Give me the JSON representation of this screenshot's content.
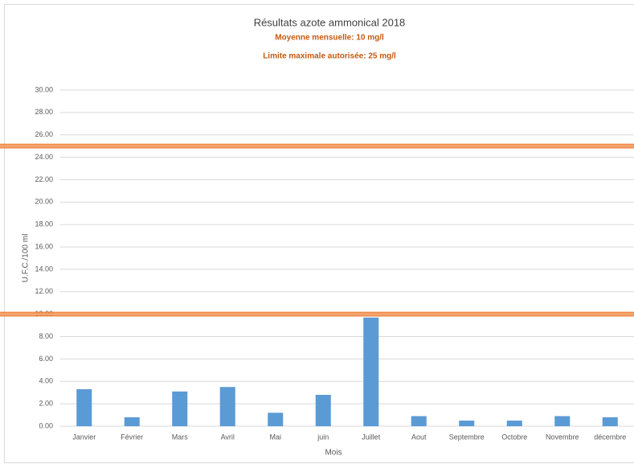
{
  "chart_data": {
    "type": "bar",
    "title": "Résultats azote ammonical 2018",
    "subtitles": [
      "Moyenne mensuelle: 10 mg/l",
      "Limite maximale autorisée: 25 mg/l"
    ],
    "x_label": "Mois",
    "y_label": "U.F.C./100 ml",
    "categories": [
      "Janvier",
      "Février",
      "Mars",
      "Avril",
      "Mai",
      "juin",
      "Juillet",
      "Aout",
      "Septembre",
      "Octobre",
      "Novembre",
      "décembre"
    ],
    "values": [
      3.3,
      0.8,
      3.1,
      3.5,
      1.2,
      2.8,
      9.7,
      0.9,
      0.5,
      0.5,
      0.9,
      0.8
    ],
    "color": "#5b9bd5",
    "reference_lines": [
      {
        "value": 25,
        "color": "#ed7d31"
      },
      {
        "value": 10,
        "color": "#ed7d31"
      }
    ],
    "ylim": [
      0,
      30
    ],
    "yticks": [
      {
        "value": 0,
        "label": "0.00"
      },
      {
        "value": 2,
        "label": "2.00"
      },
      {
        "value": 4,
        "label": "4.00"
      },
      {
        "value": 6,
        "label": "6.00"
      },
      {
        "value": 8,
        "label": "8.00"
      },
      {
        "value": 10,
        "label": "10.00"
      },
      {
        "value": 12,
        "label": "12.00"
      },
      {
        "value": 14,
        "label": "14.00"
      },
      {
        "value": 16,
        "label": "16.00"
      },
      {
        "value": 18,
        "label": "18.00"
      },
      {
        "value": 20,
        "label": "20.00"
      },
      {
        "value": 22,
        "label": "22.00"
      },
      {
        "value": 24,
        "label": "24.00"
      },
      {
        "value": 26,
        "label": "26.00"
      },
      {
        "value": 28,
        "label": "28.00"
      },
      {
        "value": 30,
        "label": "30.00"
      }
    ],
    "grid": true
  }
}
